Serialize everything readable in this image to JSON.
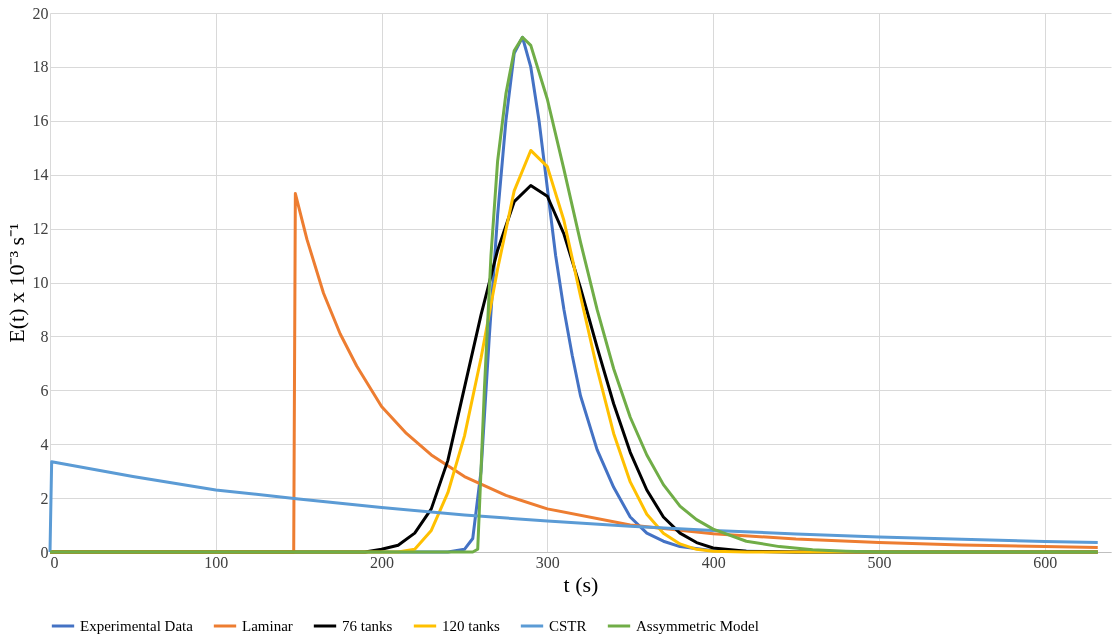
{
  "chart_data": {
    "type": "line",
    "xlabel": "t (s)",
    "ylabel": "E(t) x 10⁻³ s⁻¹",
    "xlim": [
      0,
      640
    ],
    "xticks": [
      0,
      100,
      200,
      300,
      400,
      500,
      600
    ],
    "ylim": [
      0,
      20
    ],
    "yticks": [
      0,
      2,
      4,
      6,
      8,
      10,
      12,
      14,
      16,
      18,
      20
    ],
    "grid": true,
    "legend": "bottom",
    "line_style": "solid",
    "series": [
      {
        "name": "Experimental Data",
        "color": "#4472c4",
        "x": [
          0,
          240,
          250,
          255,
          260,
          265,
          270,
          275,
          280,
          285,
          290,
          295,
          300,
          305,
          310,
          315,
          320,
          330,
          340,
          350,
          360,
          370,
          380,
          400,
          450,
          632
        ],
        "values": [
          0,
          0,
          0.1,
          0.5,
          3,
          8,
          12.5,
          16,
          18.5,
          19.1,
          18,
          16,
          13.5,
          11,
          9,
          7.3,
          5.8,
          3.8,
          2.4,
          1.3,
          0.7,
          0.4,
          0.2,
          0.05,
          0,
          0
        ]
      },
      {
        "name": "Laminar",
        "color": "#ed7d31",
        "x": [
          0,
          147,
          148,
          155,
          165,
          175,
          185,
          200,
          215,
          230,
          250,
          275,
          300,
          350,
          400,
          450,
          500,
          550,
          600,
          632
        ],
        "values": [
          0,
          0,
          13.3,
          11.6,
          9.6,
          8.1,
          6.9,
          5.4,
          4.4,
          3.6,
          2.8,
          2.1,
          1.6,
          1.0,
          0.68,
          0.48,
          0.35,
          0.26,
          0.2,
          0.17
        ]
      },
      {
        "name": "76 tanks",
        "color": "#000000",
        "x": [
          0,
          190,
          200,
          210,
          220,
          230,
          240,
          250,
          260,
          270,
          280,
          290,
          300,
          310,
          320,
          330,
          340,
          350,
          360,
          370,
          380,
          390,
          400,
          420,
          450,
          632
        ],
        "values": [
          0,
          0,
          0.1,
          0.25,
          0.7,
          1.6,
          3.4,
          6.1,
          8.8,
          11.2,
          13,
          13.6,
          13.2,
          11.8,
          9.8,
          7.6,
          5.5,
          3.7,
          2.3,
          1.3,
          0.7,
          0.35,
          0.15,
          0.03,
          0,
          0
        ]
      },
      {
        "name": "120 tanks",
        "color": "#ffc000",
        "x": [
          0,
          210,
          220,
          230,
          240,
          250,
          260,
          270,
          280,
          290,
          300,
          310,
          320,
          330,
          340,
          350,
          360,
          370,
          380,
          390,
          400,
          420,
          632
        ],
        "values": [
          0,
          0,
          0.1,
          0.8,
          2.2,
          4.3,
          7.2,
          10.5,
          13.4,
          14.9,
          14.3,
          12.3,
          9.5,
          6.8,
          4.4,
          2.6,
          1.4,
          0.7,
          0.3,
          0.1,
          0.03,
          0,
          0
        ]
      },
      {
        "name": "CSTR",
        "color": "#5b9bd5",
        "x": [
          0,
          1,
          50,
          100,
          150,
          200,
          250,
          300,
          350,
          400,
          450,
          500,
          550,
          600,
          632
        ],
        "values": [
          0,
          3.35,
          2.8,
          2.3,
          1.97,
          1.65,
          1.37,
          1.15,
          0.96,
          0.8,
          0.67,
          0.56,
          0.47,
          0.39,
          0.35
        ]
      },
      {
        "name": "Assymmetric Model",
        "color": "#70ad47",
        "x": [
          0,
          255,
          258,
          262,
          266,
          270,
          275,
          280,
          285,
          290,
          300,
          310,
          320,
          330,
          340,
          350,
          360,
          370,
          380,
          390,
          400,
          420,
          440,
          460,
          480,
          500,
          632
        ],
        "values": [
          0,
          0,
          0.1,
          6,
          11,
          14.5,
          17,
          18.6,
          19.1,
          18.8,
          16.8,
          14.2,
          11.5,
          9.0,
          6.8,
          5.0,
          3.6,
          2.5,
          1.7,
          1.2,
          0.85,
          0.4,
          0.2,
          0.08,
          0.03,
          0,
          0
        ]
      }
    ]
  }
}
